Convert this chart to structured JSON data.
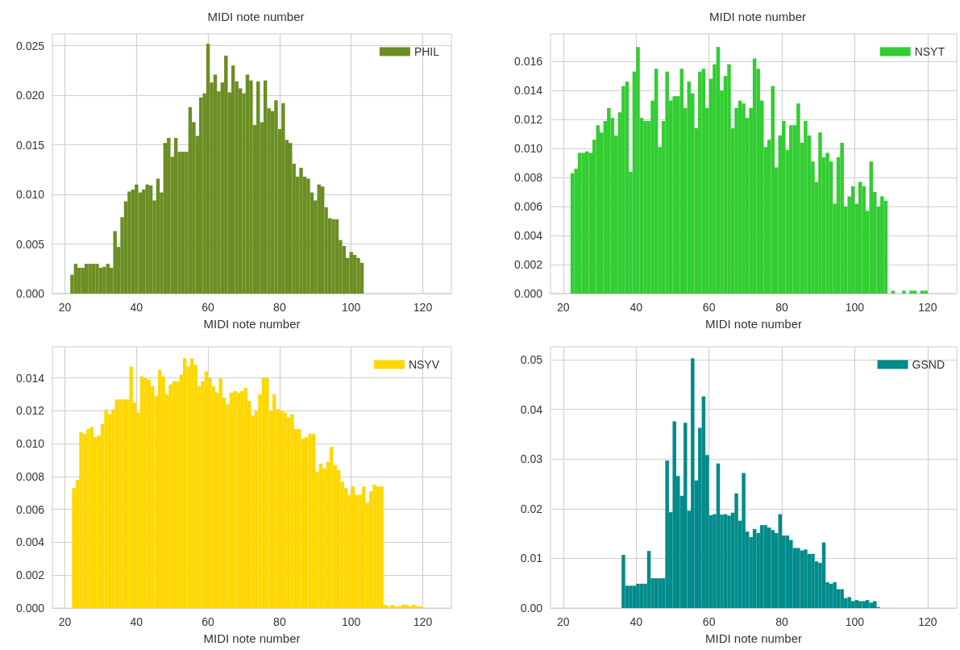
{
  "chart_data": [
    {
      "type": "histogram",
      "title": "MIDI note number",
      "xlabel": "MIDI note number",
      "legend": "top right",
      "grid": true,
      "bins": [
        21.5,
        22.5,
        23.5,
        24.5,
        25.5,
        26.5,
        27.5,
        28.5,
        29.5,
        30.5,
        31.5,
        32.5,
        33.5,
        34.5,
        35.5,
        36.5,
        37.5,
        38.5,
        39.5,
        40.5,
        41.5,
        42.5,
        43.5,
        44.5,
        45.5,
        46.5,
        47.5,
        48.5,
        49.5,
        50.5,
        51.5,
        52.5,
        53.5,
        54.5,
        55.5,
        56.5,
        57.5,
        58.5,
        59.5,
        60.5,
        61.5,
        62.5,
        63.5,
        64.5,
        65.5,
        66.5,
        67.5,
        68.5,
        69.5,
        70.5,
        71.5,
        72.5,
        73.5,
        74.5,
        75.5,
        76.5,
        77.5,
        78.5,
        79.5,
        80.5,
        81.5,
        82.5,
        83.5,
        84.5,
        85.5,
        86.5,
        87.5,
        88.5,
        89.5,
        90.5,
        91.5,
        92.5,
        93.5,
        94.5,
        95.5,
        96.5,
        97.5,
        98.5,
        99.5,
        100.5,
        101.5,
        102.5,
        103.5
      ],
      "series": [
        {
          "name": "PHIL",
          "color": "#6b8e23",
          "values": [
            0.0019,
            0.003,
            0.0026,
            0.0026,
            0.003,
            0.003,
            0.003,
            0.003,
            0.0026,
            0.0027,
            0.003,
            0.0026,
            0.0063,
            0.0047,
            0.0077,
            0.0093,
            0.0103,
            0.0105,
            0.011,
            0.0102,
            0.0105,
            0.011,
            0.0109,
            0.0094,
            0.0116,
            0.0102,
            0.0152,
            0.0157,
            0.0138,
            0.0157,
            0.0143,
            0.0143,
            0.0143,
            0.0188,
            0.0173,
            0.0159,
            0.0198,
            0.0202,
            0.0252,
            0.0213,
            0.0221,
            0.0204,
            0.0213,
            0.024,
            0.0203,
            0.023,
            0.0214,
            0.0207,
            0.0202,
            0.0221,
            0.0215,
            0.017,
            0.0214,
            0.0173,
            0.0215,
            0.0187,
            0.0184,
            0.0195,
            0.0166,
            0.0192,
            0.0155,
            0.0152,
            0.0131,
            0.0118,
            0.0127,
            0.0118,
            0.0116,
            0.0102,
            0.0094,
            0.011,
            0.0108,
            0.0087,
            0.0076,
            0.0075,
            0.0075,
            0.0054,
            0.0048,
            0.0036,
            0.0042,
            0.0039,
            0.0036,
            0.0031
          ]
        }
      ],
      "xlim": [
        16.5,
        128
      ],
      "xticks": [
        20,
        40,
        60,
        80,
        100,
        120
      ],
      "ylim": [
        0,
        0.0262
      ],
      "yticks": [
        {
          "value": 0,
          "label": "0.000"
        },
        {
          "value": 0.005,
          "label": "0.005"
        },
        {
          "value": 0.01,
          "label": "0.010"
        },
        {
          "value": 0.015,
          "label": "0.015"
        },
        {
          "value": 0.02,
          "label": "0.020"
        },
        {
          "value": 0.025,
          "label": "0.025"
        }
      ]
    },
    {
      "type": "histogram",
      "title": "MIDI note number",
      "xlabel": "MIDI note number",
      "legend": "top right",
      "grid": true,
      "bins": [
        22,
        23,
        24,
        25,
        26,
        27,
        28,
        29,
        30,
        31,
        32,
        33,
        34,
        35,
        36,
        37,
        38,
        39,
        40,
        41,
        42,
        43,
        44,
        45,
        46,
        47,
        48,
        49,
        50,
        51,
        52,
        53,
        54,
        55,
        56,
        57,
        58,
        59,
        60,
        61,
        62,
        63,
        64,
        65,
        66,
        67,
        68,
        69,
        70,
        71,
        72,
        73,
        74,
        75,
        76,
        77,
        78,
        79,
        80,
        81,
        82,
        83,
        84,
        85,
        86,
        87,
        88,
        89,
        90,
        91,
        92,
        93,
        94,
        95,
        96,
        97,
        98,
        99,
        100,
        101,
        102,
        103,
        104,
        105,
        106,
        107,
        108,
        109,
        110,
        111,
        112,
        113,
        114,
        115,
        116,
        117,
        118,
        119,
        120
      ],
      "series": [
        {
          "name": "NSYT",
          "color": "#32cd32",
          "values": [
            0.0083,
            0.0086,
            0.0097,
            0.0097,
            0.0098,
            0.0097,
            0.0106,
            0.0116,
            0.0111,
            0.0119,
            0.0128,
            0.0121,
            0.0109,
            0.0125,
            0.0143,
            0.0146,
            0.0084,
            0.0153,
            0.017,
            0.0121,
            0.0119,
            0.0119,
            0.0133,
            0.0155,
            0.0101,
            0.0119,
            0.0153,
            0.0133,
            0.0136,
            0.0136,
            0.0155,
            0.0128,
            0.0146,
            0.0138,
            0.0114,
            0.0153,
            0.0155,
            0.0128,
            0.0148,
            0.0158,
            0.017,
            0.014,
            0.015,
            0.0158,
            0.0114,
            0.0128,
            0.0133,
            0.0131,
            0.0121,
            0.0128,
            0.0162,
            0.0155,
            0.0133,
            0.0101,
            0.0106,
            0.0143,
            0.0087,
            0.0109,
            0.0119,
            0.0099,
            0.0116,
            0.0116,
            0.0131,
            0.0104,
            0.0119,
            0.0109,
            0.0091,
            0.0077,
            0.0111,
            0.0094,
            0.0097,
            0.0091,
            0.0062,
            0.0094,
            0.0104,
            0.006,
            0.0067,
            0.0074,
            0.0062,
            0.0077,
            0.0074,
            0.0057,
            0.0091,
            0.007,
            0.006,
            0.0067,
            0.0064,
            0,
            0.0002,
            0,
            0,
            0.0002,
            0,
            0.0002,
            0.0002,
            0,
            0.0002,
            0.0002
          ]
        }
      ],
      "xlim": [
        16.5,
        128
      ],
      "xticks": [
        20,
        40,
        60,
        80,
        100,
        120
      ],
      "ylim": [
        0,
        0.0179
      ],
      "yticks": [
        {
          "value": 0,
          "label": "0.000"
        },
        {
          "value": 0.002,
          "label": "0.002"
        },
        {
          "value": 0.004,
          "label": "0.004"
        },
        {
          "value": 0.006,
          "label": "0.006"
        },
        {
          "value": 0.008,
          "label": "0.008"
        },
        {
          "value": 0.01,
          "label": "0.010"
        },
        {
          "value": 0.012,
          "label": "0.012"
        },
        {
          "value": 0.014,
          "label": "0.014"
        },
        {
          "value": 0.016,
          "label": "0.016"
        }
      ]
    },
    {
      "type": "histogram",
      "xlabel": "MIDI note number",
      "legend": "top right",
      "grid": true,
      "bins": [
        22,
        23,
        24,
        25,
        26,
        27,
        28,
        29,
        30,
        31,
        32,
        33,
        34,
        35,
        36,
        37,
        38,
        39,
        40,
        41,
        42,
        43,
        44,
        45,
        46,
        47,
        48,
        49,
        50,
        51,
        52,
        53,
        54,
        55,
        56,
        57,
        58,
        59,
        60,
        61,
        62,
        63,
        64,
        65,
        66,
        67,
        68,
        69,
        70,
        71,
        72,
        73,
        74,
        75,
        76,
        77,
        78,
        79,
        80,
        81,
        82,
        83,
        84,
        85,
        86,
        87,
        88,
        89,
        90,
        91,
        92,
        93,
        94,
        95,
        96,
        97,
        98,
        99,
        100,
        101,
        102,
        103,
        104,
        105,
        106,
        107,
        108,
        109,
        110,
        111,
        112,
        113,
        114,
        115,
        116,
        117,
        118,
        119,
        120
      ],
      "series": [
        {
          "name": "NSYV",
          "color": "#ffd700",
          "values": [
            0.0073,
            0.0078,
            0.0107,
            0.0106,
            0.0109,
            0.011,
            0.0104,
            0.0105,
            0.0112,
            0.0121,
            0.0118,
            0.0121,
            0.0127,
            0.0127,
            0.0127,
            0.0127,
            0.0147,
            0.0125,
            0.0119,
            0.0141,
            0.014,
            0.0139,
            0.0135,
            0.0129,
            0.0145,
            0.0141,
            0.013,
            0.0136,
            0.0138,
            0.0138,
            0.0142,
            0.0152,
            0.0147,
            0.0152,
            0.0148,
            0.0135,
            0.0138,
            0.0144,
            0.014,
            0.0135,
            0.0131,
            0.014,
            0.0128,
            0.0124,
            0.0131,
            0.0132,
            0.0131,
            0.0132,
            0.0134,
            0.0126,
            0.0117,
            0.012,
            0.013,
            0.014,
            0.014,
            0.012,
            0.013,
            0.0121,
            0.012,
            0.0119,
            0.0116,
            0.0118,
            0.0109,
            0.0109,
            0.0103,
            0.0104,
            0.0106,
            0.0106,
            0.0083,
            0.0088,
            0.0085,
            0.0089,
            0.0098,
            0.0087,
            0.0084,
            0.0077,
            0.0073,
            0.0069,
            0.0074,
            0.0069,
            0.0069,
            0.0074,
            0.0064,
            0.0071,
            0.0075,
            0.0074,
            0.0074,
            0.0002,
            0.0001,
            0.0002,
            0.0001,
            0.0001,
            0.0002,
            0.0002,
            0.0001,
            0.0002,
            0.0001,
            0.0001
          ]
        }
      ],
      "xlim": [
        16.5,
        128
      ],
      "xticks": [
        20,
        40,
        60,
        80,
        100,
        120
      ],
      "ylim": [
        0,
        0.0159
      ],
      "yticks": [
        {
          "value": 0,
          "label": "0.000"
        },
        {
          "value": 0.002,
          "label": "0.002"
        },
        {
          "value": 0.004,
          "label": "0.004"
        },
        {
          "value": 0.006,
          "label": "0.006"
        },
        {
          "value": 0.008,
          "label": "0.008"
        },
        {
          "value": 0.01,
          "label": "0.010"
        },
        {
          "value": 0.012,
          "label": "0.012"
        },
        {
          "value": 0.014,
          "label": "0.014"
        }
      ]
    },
    {
      "type": "histogram",
      "xlabel": "MIDI note number",
      "legend": "top right",
      "grid": true,
      "bins": [
        36,
        37,
        38,
        39,
        40,
        41,
        42,
        43,
        44,
        45,
        46,
        47,
        48,
        49,
        50,
        51,
        52,
        53,
        54,
        55,
        56,
        57,
        58,
        59,
        60,
        61,
        62,
        63,
        64,
        65,
        66,
        67,
        68,
        69,
        70,
        71,
        72,
        73,
        74,
        75,
        76,
        77,
        78,
        79,
        80,
        81,
        82,
        83,
        84,
        85,
        86,
        87,
        88,
        89,
        90,
        91,
        92,
        93,
        94,
        95,
        96,
        97,
        98,
        99,
        100,
        101,
        102,
        103,
        104,
        105,
        106,
        107
      ],
      "series": [
        {
          "name": "GSND",
          "color": "#008b8b",
          "values": [
            0.0107,
            0.0045,
            0.0045,
            0.0045,
            0.0049,
            0.0049,
            0.0049,
            0.0115,
            0.006,
            0.006,
            0.006,
            0.006,
            0.0297,
            0.0193,
            0.0376,
            0.0266,
            0.0226,
            0.0373,
            0.0196,
            0.0503,
            0.0257,
            0.0363,
            0.0426,
            0.0308,
            0.0187,
            0.0189,
            0.0291,
            0.0188,
            0.0189,
            0.0186,
            0.0192,
            0.0231,
            0.0176,
            0.0272,
            0.0154,
            0.0143,
            0.0159,
            0.0151,
            0.0167,
            0.0167,
            0.0162,
            0.0157,
            0.0151,
            0.0189,
            0.0146,
            0.0146,
            0.0137,
            0.0121,
            0.0121,
            0.0116,
            0.0118,
            0.0109,
            0.0109,
            0.0094,
            0.0091,
            0.0132,
            0.0052,
            0.0049,
            0.0052,
            0.0038,
            0.0038,
            0.002,
            0.0022,
            0.0014,
            0.0016,
            0.0014,
            0.0014,
            0.0016,
            0.0011,
            0.0014,
            0.0002
          ]
        }
      ],
      "xlim": [
        16.5,
        128
      ],
      "xticks": [
        20,
        40,
        60,
        80,
        100,
        120
      ],
      "ylim": [
        0,
        0.0526
      ],
      "yticks": [
        {
          "value": 0,
          "label": "0.00"
        },
        {
          "value": 0.01,
          "label": "0.01"
        },
        {
          "value": 0.02,
          "label": "0.02"
        },
        {
          "value": 0.03,
          "label": "0.03"
        },
        {
          "value": 0.04,
          "label": "0.04"
        },
        {
          "value": 0.05,
          "label": "0.05"
        }
      ]
    }
  ]
}
